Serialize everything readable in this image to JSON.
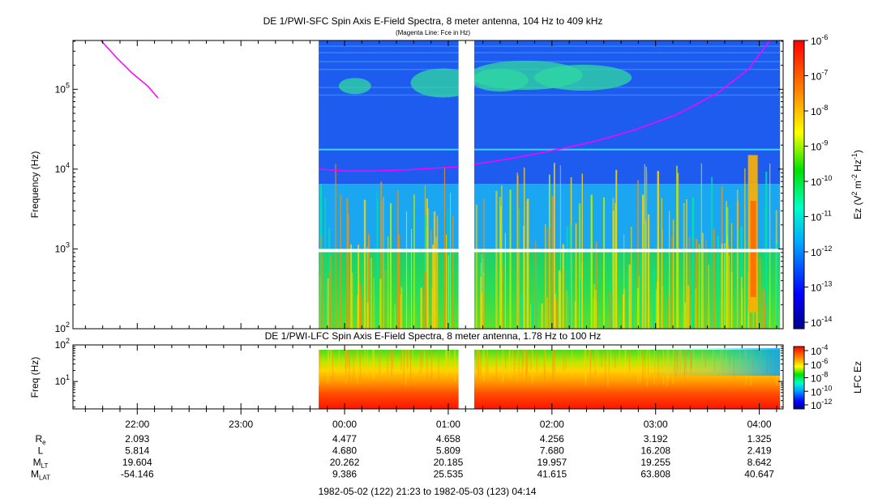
{
  "chart_data": [
    {
      "type": "heatmap",
      "title": "DE 1/PWI-SFC  Spin Axis E-Field Spectra, 8 meter antenna, 104 Hz to 409 kHz",
      "subtitle": "(Magenta Line: Fce in Hz)",
      "ylabel": "Frequency (Hz)",
      "yscale": "log",
      "ylim": [
        100,
        409000
      ],
      "yticks": [
        {
          "value": 100,
          "base": "10",
          "exp": "2"
        },
        {
          "value": 1000,
          "base": "10",
          "exp": "3"
        },
        {
          "value": 10000,
          "base": "10",
          "exp": "4"
        },
        {
          "value": 100000,
          "base": "10",
          "exp": "5"
        }
      ],
      "time_range_hours": [
        21.38,
        28.23
      ],
      "data_coverage_hours": [
        23.75,
        28.2
      ],
      "data_gap_hours": [
        25.1,
        25.25
      ],
      "colorbar": {
        "label_parts": [
          "Ez (V",
          "2",
          " m",
          "-2",
          " Hz",
          "-1",
          ")"
        ],
        "scale": "log",
        "range": [
          1e-14,
          1e-06
        ],
        "ticks": [
          {
            "base": "10",
            "exp": "-6"
          },
          {
            "base": "10",
            "exp": "-7"
          },
          {
            "base": "10",
            "exp": "-8"
          },
          {
            "base": "10",
            "exp": "-9"
          },
          {
            "base": "10",
            "exp": "-10"
          },
          {
            "base": "10",
            "exp": "-11"
          },
          {
            "base": "10",
            "exp": "-12"
          },
          {
            "base": "10",
            "exp": "-13"
          },
          {
            "base": "10",
            "exp": "-14"
          }
        ]
      },
      "fce_line": {
        "color": "#ff00ff",
        "segments": [
          {
            "x": [
              21.65,
              21.8,
              21.95,
              22.1,
              22.2
            ],
            "y": [
              409000,
              250000,
              160000,
              110000,
              78000
            ]
          },
          {
            "x": [
              23.75,
              24.0,
              24.3,
              24.6,
              24.9,
              25.1
            ],
            "y": [
              10000,
              9500,
              9500,
              9800,
              10300,
              10700
            ]
          },
          {
            "x": [
              25.25,
              25.6,
              26.0,
              26.4,
              26.8,
              27.2,
              27.6,
              27.9,
              28.1
            ],
            "y": [
              11500,
              13500,
              17000,
              22000,
              31000,
              48000,
              90000,
              180000,
              409000
            ]
          }
        ]
      }
    },
    {
      "type": "heatmap",
      "title": "DE 1/PWI-LFC  Spin Axis E-Field Spectra, 8 meter antenna, 1.78 Hz to 100 Hz",
      "ylabel": "Freq (Hz)",
      "yscale": "log",
      "ylim": [
        1.78,
        100
      ],
      "yticks": [
        {
          "value": 10,
          "base": "10",
          "exp": "1"
        },
        {
          "value": 100,
          "base": "10",
          "exp": "2"
        }
      ],
      "colorbar": {
        "label": "LFC Ez",
        "scale": "log",
        "range": [
          1e-12,
          0.0001
        ],
        "ticks": [
          {
            "base": "10",
            "exp": "-4"
          },
          {
            "base": "10",
            "exp": "-6"
          },
          {
            "base": "10",
            "exp": "-8"
          },
          {
            "base": "10",
            "exp": "-10"
          },
          {
            "base": "10",
            "exp": "-12"
          }
        ]
      }
    }
  ],
  "xaxis": {
    "ticks": [
      {
        "hour": 22,
        "label": "22:00"
      },
      {
        "hour": 23,
        "label": "23:00"
      },
      {
        "hour": 24,
        "label": "00:00"
      },
      {
        "hour": 25,
        "label": "01:00"
      },
      {
        "hour": 26,
        "label": "02:00"
      },
      {
        "hour": 27,
        "label": "03:00"
      },
      {
        "hour": 28,
        "label": "04:00"
      }
    ]
  },
  "ephemeris": [
    {
      "label": "R",
      "sub": "e",
      "values": [
        "2.093",
        "",
        "4.477",
        "4.658",
        "4.256",
        "3.192",
        "1.325"
      ]
    },
    {
      "label": "L",
      "sub": "",
      "values": [
        "5.814",
        "",
        "4.680",
        "5.809",
        "7.680",
        "16.208",
        "2.419"
      ]
    },
    {
      "label": "M",
      "sub": "LT",
      "values": [
        "19.604",
        "",
        "20.262",
        "20.185",
        "19.957",
        "19.255",
        "8.642"
      ]
    },
    {
      "label": "M",
      "sub": "LAT",
      "values": [
        "-54.146",
        "",
        "9.386",
        "25.535",
        "41.615",
        "63.808",
        "40.647"
      ]
    }
  ],
  "footer": "1982-05-02 (122) 21:23 to 1982-05-03 (123) 04:14"
}
